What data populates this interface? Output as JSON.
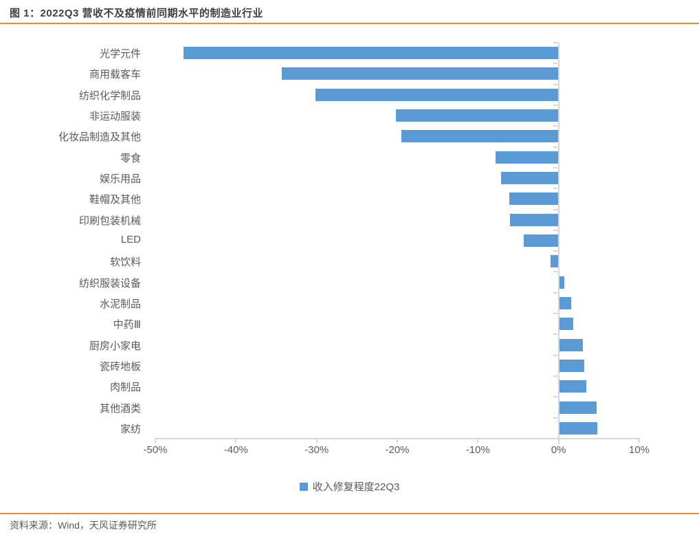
{
  "header": {
    "title": "图 1：2022Q3 营收不及疫情前同期水平的制造业行业"
  },
  "chart_data": {
    "type": "bar",
    "orientation": "horizontal",
    "title": "图 1：2022Q3 营收不及疫情前同期水平的制造业行业",
    "categories": [
      "光学元件",
      "商用载客车",
      "纺织化学制品",
      "非运动服装",
      "化妆品制造及其他",
      "零食",
      "娱乐用品",
      "鞋帽及其他",
      "印刷包装机械",
      "LED",
      "软饮料",
      "纺织服装设备",
      "水泥制品",
      "中药Ⅲ",
      "厨房小家电",
      "瓷砖地板",
      "肉制品",
      "其他酒类",
      "家纺"
    ],
    "series": [
      {
        "name": "收入修复程度22Q3",
        "values": [
          -46.5,
          -34.3,
          -30.1,
          -20.2,
          -19.5,
          -7.8,
          -7.1,
          -6.1,
          -6.0,
          -4.3,
          -1.0,
          0.7,
          1.6,
          1.8,
          3.0,
          3.2,
          3.4,
          4.7,
          4.8
        ]
      }
    ],
    "values_unit": "percent",
    "xlim": [
      -50,
      10
    ],
    "x_tick_values": [
      -50,
      -40,
      -30,
      -20,
      -10,
      0,
      10
    ],
    "x_tick_labels": [
      "-50%",
      "-40%",
      "-30%",
      "-20%",
      "-10%",
      "0%",
      "10%"
    ],
    "grid": "off",
    "legend_position": "bottom",
    "bar_color": "#5b9bd5",
    "axis_color": "#d6d6d6"
  },
  "legend": {
    "label": "收入修复程度22Q3",
    "swatch_color": "#5b9bd5"
  },
  "footer": {
    "source": "资料来源：Wind，天风证券研究所"
  },
  "colors": {
    "accent_orange": "#ed8733",
    "bar_blue": "#5b9bd5",
    "axis_gray": "#d6d6d6",
    "text_gray": "#595959",
    "title_gray": "#3f3f3f"
  }
}
